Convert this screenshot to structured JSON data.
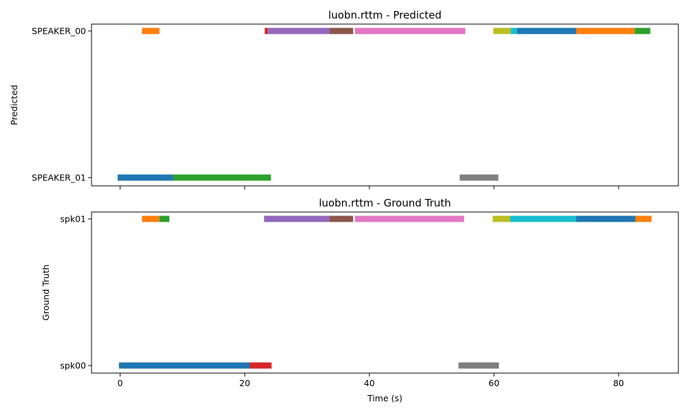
{
  "chart_data": [
    {
      "type": "timeline",
      "title": "luobn.rttm - Predicted",
      "ylabel": "Predicted",
      "xlabel": "",
      "xlim": [
        -4.6,
        89.6
      ],
      "x_ticks": [
        0,
        20,
        40,
        60,
        80
      ],
      "show_xtick_labels": false,
      "speakers": [
        "SPEAKER_00",
        "SPEAKER_01"
      ],
      "segments": [
        {
          "speaker": "SPEAKER_00",
          "start": 3.5,
          "end": 6.3,
          "color": "#ff7f0e"
        },
        {
          "speaker": "SPEAKER_00",
          "start": 23.2,
          "end": 23.7,
          "color": "#d62728"
        },
        {
          "speaker": "SPEAKER_00",
          "start": 23.7,
          "end": 33.6,
          "color": "#9467bd"
        },
        {
          "speaker": "SPEAKER_00",
          "start": 33.6,
          "end": 37.4,
          "color": "#8c564b"
        },
        {
          "speaker": "SPEAKER_00",
          "start": 37.7,
          "end": 55.4,
          "color": "#e377c2"
        },
        {
          "speaker": "SPEAKER_00",
          "start": 59.9,
          "end": 62.7,
          "color": "#bcbd22"
        },
        {
          "speaker": "SPEAKER_00",
          "start": 62.7,
          "end": 63.7,
          "color": "#17becf"
        },
        {
          "speaker": "SPEAKER_00",
          "start": 63.7,
          "end": 73.2,
          "color": "#1f77b4"
        },
        {
          "speaker": "SPEAKER_00",
          "start": 73.2,
          "end": 82.6,
          "color": "#ff7f0e"
        },
        {
          "speaker": "SPEAKER_00",
          "start": 82.6,
          "end": 85.1,
          "color": "#2ca02c"
        },
        {
          "speaker": "SPEAKER_01",
          "start": -0.4,
          "end": 8.5,
          "color": "#1f77b4"
        },
        {
          "speaker": "SPEAKER_01",
          "start": 8.5,
          "end": 24.2,
          "color": "#2ca02c"
        },
        {
          "speaker": "SPEAKER_01",
          "start": 54.5,
          "end": 60.7,
          "color": "#7f7f7f"
        }
      ]
    },
    {
      "type": "timeline",
      "title": "luobn.rttm - Ground Truth",
      "ylabel": "Ground Truth",
      "xlabel": "Time (s)",
      "xlim": [
        -4.6,
        89.6
      ],
      "x_ticks": [
        0,
        20,
        40,
        60,
        80
      ],
      "show_xtick_labels": true,
      "speakers": [
        "spk01",
        "spk00"
      ],
      "segments": [
        {
          "speaker": "spk01",
          "start": 3.5,
          "end": 6.3,
          "color": "#ff7f0e"
        },
        {
          "speaker": "spk01",
          "start": 6.3,
          "end": 7.9,
          "color": "#2ca02c"
        },
        {
          "speaker": "spk01",
          "start": 23.1,
          "end": 33.6,
          "color": "#9467bd"
        },
        {
          "speaker": "spk01",
          "start": 33.6,
          "end": 37.4,
          "color": "#8c564b"
        },
        {
          "speaker": "spk01",
          "start": 37.7,
          "end": 55.2,
          "color": "#e377c2"
        },
        {
          "speaker": "spk01",
          "start": 59.8,
          "end": 62.6,
          "color": "#bcbd22"
        },
        {
          "speaker": "spk01",
          "start": 62.6,
          "end": 73.2,
          "color": "#17becf"
        },
        {
          "speaker": "spk01",
          "start": 73.2,
          "end": 82.7,
          "color": "#1f77b4"
        },
        {
          "speaker": "spk01",
          "start": 82.7,
          "end": 85.3,
          "color": "#ff7f0e"
        },
        {
          "speaker": "spk00",
          "start": -0.2,
          "end": 20.8,
          "color": "#1f77b4"
        },
        {
          "speaker": "spk00",
          "start": 20.8,
          "end": 24.3,
          "color": "#d62728"
        },
        {
          "speaker": "spk00",
          "start": 54.3,
          "end": 60.8,
          "color": "#7f7f7f"
        }
      ]
    }
  ]
}
